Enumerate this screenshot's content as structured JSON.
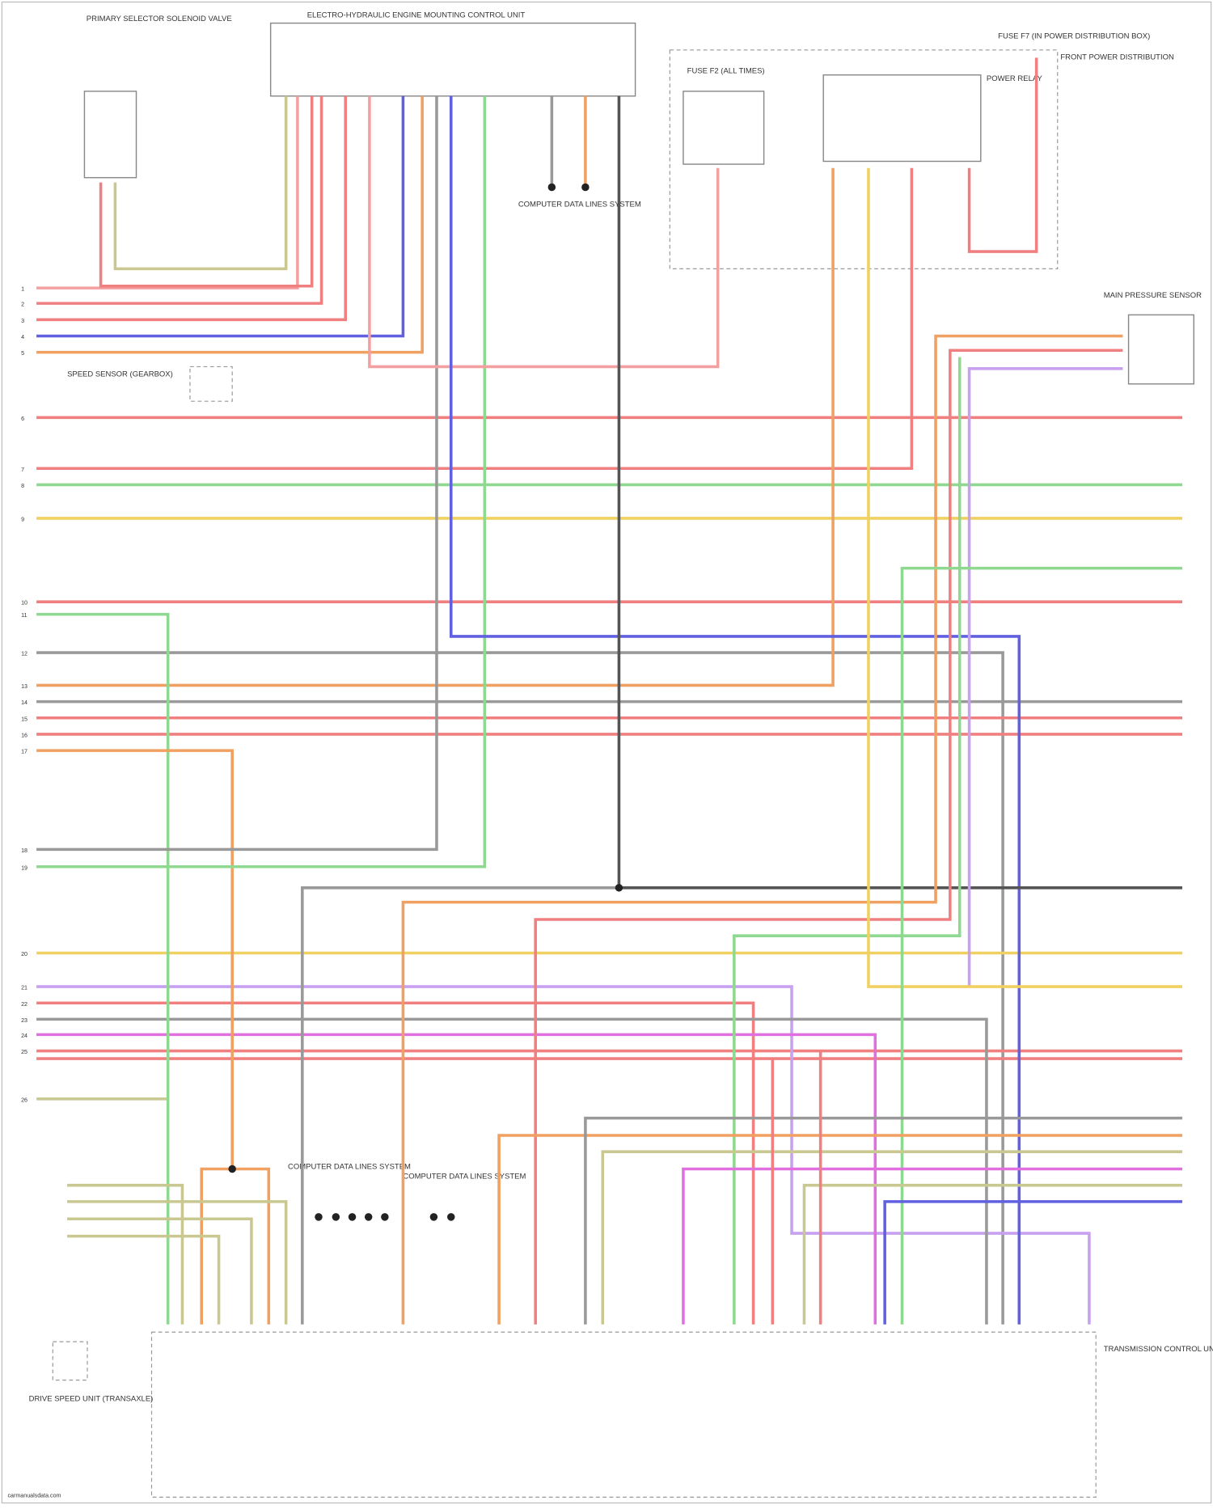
{
  "components": [
    {
      "label": "PRIMARY SELECTOR SOLENOID VALVE"
    },
    {
      "label": "ELECTRO-HYDRAULIC ENGINE MOUNTING CONTROL UNIT"
    },
    {
      "label": "FUSE F7 (IN POWER DISTRIBUTION BOX)"
    },
    {
      "label": "POWER RELAY"
    },
    {
      "label": "FUSE F2 (ALL TIMES)"
    },
    {
      "label": "FRONT POWER DISTRIBUTION"
    },
    {
      "label": "MAIN PRESSURE SENSOR"
    },
    {
      "label": "SPEED SENSOR (GEARBOX)"
    },
    {
      "label": "COMPUTER DATA LINES SYSTEM"
    },
    {
      "label": "COMPUTER DATA LINES SYSTEM"
    },
    {
      "label": "COMPUTER DATA LINES SYSTEM"
    },
    {
      "label": "DRIVE SPEED UNIT (TRANSAXLE)"
    },
    {
      "label": "TRANSMISSION CONTROL UNIT"
    }
  ],
  "left_pins": [
    "1",
    "2",
    "3",
    "4",
    "5",
    "6",
    "7",
    "8",
    "9",
    "10",
    "11",
    "12",
    "13",
    "14",
    "15",
    "16",
    "17",
    "18",
    "19",
    "20",
    "21",
    "22",
    "23",
    "24",
    "25",
    "26"
  ],
  "footer": "carmanualsdata.com"
}
